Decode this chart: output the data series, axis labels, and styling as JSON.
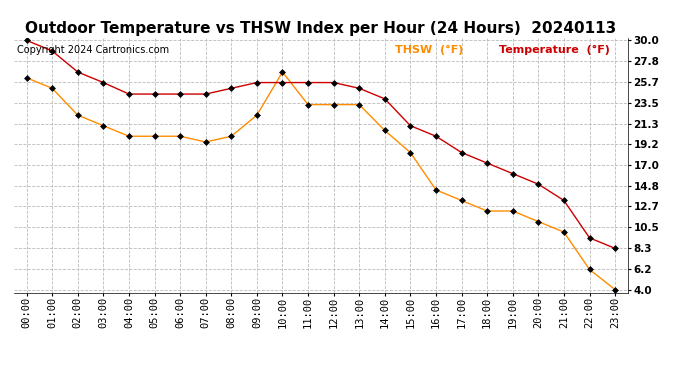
{
  "title": "Outdoor Temperature vs THSW Index per Hour (24 Hours)  20240113",
  "copyright": "Copyright 2024 Cartronics.com",
  "legend_thsw": "THSW  (°F)",
  "legend_temp": "Temperature  (°F)",
  "thsw_color": "#ff8c00",
  "temp_color": "#cc0000",
  "hours": [
    "00:00",
    "01:00",
    "02:00",
    "03:00",
    "04:00",
    "05:00",
    "06:00",
    "07:00",
    "08:00",
    "09:00",
    "10:00",
    "11:00",
    "12:00",
    "13:00",
    "14:00",
    "15:00",
    "16:00",
    "17:00",
    "18:00",
    "19:00",
    "20:00",
    "21:00",
    "22:00",
    "23:00"
  ],
  "temperature": [
    30.0,
    28.9,
    26.7,
    25.6,
    24.4,
    24.4,
    24.4,
    24.4,
    25.0,
    25.6,
    25.6,
    25.6,
    25.6,
    25.0,
    23.9,
    21.1,
    20.0,
    18.3,
    17.2,
    16.1,
    15.0,
    13.3,
    9.4,
    8.3
  ],
  "thsw": [
    26.1,
    25.0,
    22.2,
    21.1,
    20.0,
    20.0,
    20.0,
    19.4,
    20.0,
    22.2,
    26.7,
    23.3,
    23.3,
    23.3,
    20.6,
    18.3,
    14.4,
    13.3,
    12.2,
    12.2,
    11.1,
    10.0,
    6.1,
    4.0
  ],
  "ylim_min": 4.0,
  "ylim_max": 30.0,
  "yticks": [
    4.0,
    6.2,
    8.3,
    10.5,
    12.7,
    14.8,
    17.0,
    19.2,
    21.3,
    23.5,
    25.7,
    27.8,
    30.0
  ],
  "background_color": "#ffffff",
  "grid_color": "#bbbbbb",
  "title_fontsize": 11,
  "tick_fontsize": 7.5,
  "copyright_fontsize": 7,
  "legend_fontsize": 8
}
